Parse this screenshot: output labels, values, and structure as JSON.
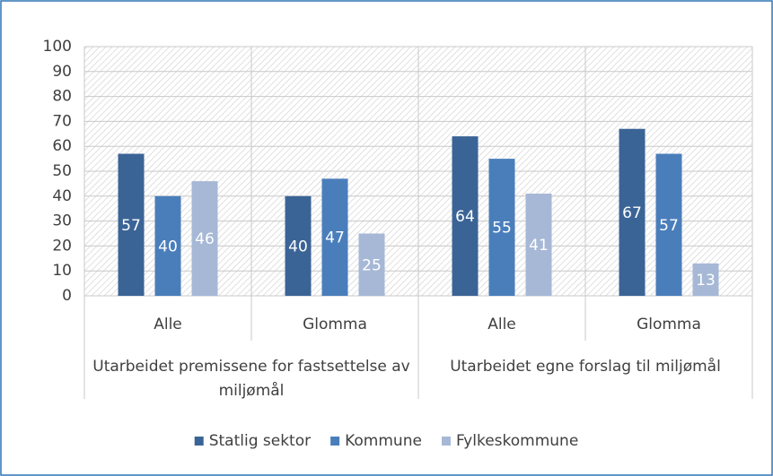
{
  "chart_data": {
    "type": "bar",
    "categories": [
      "Alle",
      "Glomma",
      "Alle",
      "Glomma"
    ],
    "groups": [
      "Utarbeidet premissene for fastsettelse av miljømål",
      "Utarbeidet egne forslag til miljømål"
    ],
    "series": [
      {
        "name": "Statlig sektor",
        "color": "#3b6496",
        "values": [
          57,
          40,
          64,
          67
        ]
      },
      {
        "name": "Kommune",
        "color": "#4a7ebb",
        "values": [
          40,
          47,
          55,
          57
        ]
      },
      {
        "name": "Fylkeskommune",
        "color": "#a6b8d6",
        "values": [
          46,
          25,
          41,
          13
        ]
      }
    ],
    "ylim": [
      0,
      100
    ],
    "yticks": [
      0,
      10,
      20,
      30,
      40,
      50,
      60,
      70,
      80,
      90,
      100
    ],
    "grid": true,
    "legend": "bottom"
  }
}
